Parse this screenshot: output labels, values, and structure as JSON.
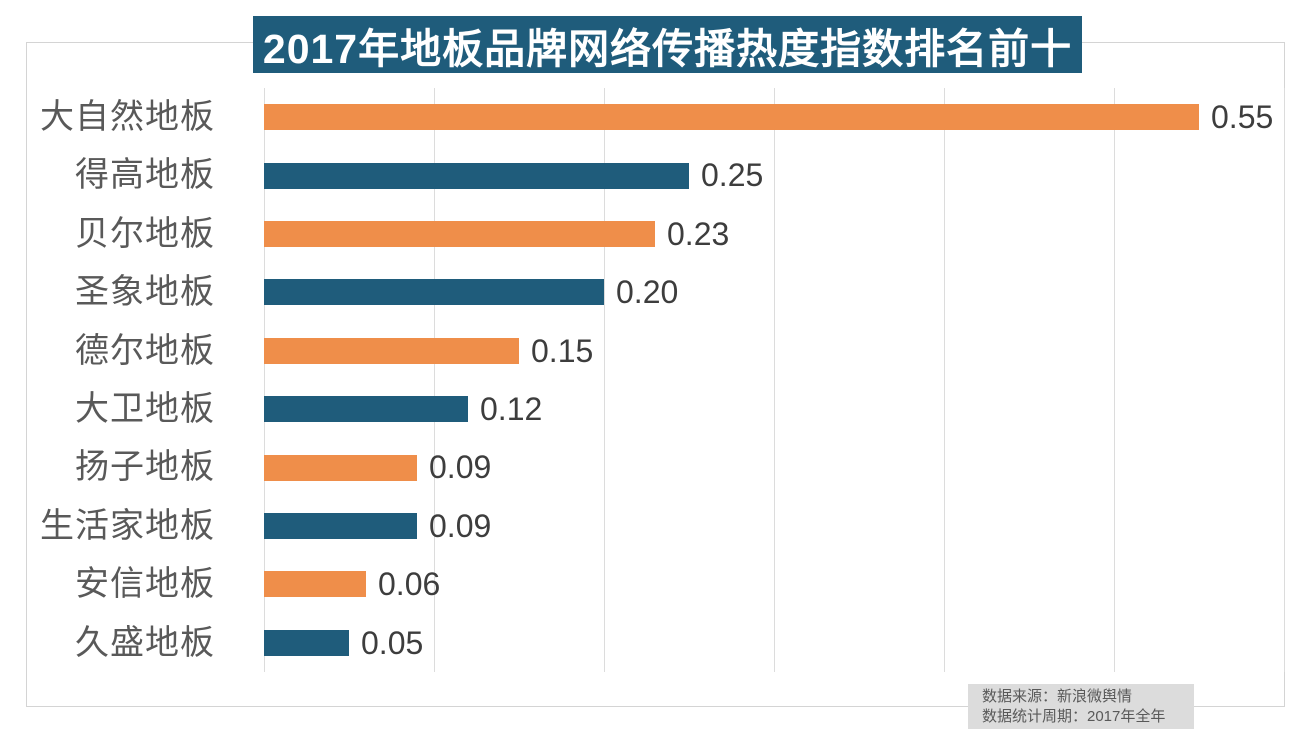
{
  "title": {
    "text": "2017年地板品牌网络传播热度指数排名前十",
    "bg_color": "#1f5c7b",
    "text_color": "#ffffff"
  },
  "source_note": {
    "lines": [
      "数据来源：新浪微舆情",
      "数据统计周期：2017年全年"
    ],
    "bg_color": "#dcdcdc",
    "text_color": "#595959"
  },
  "colors": {
    "bar_orange": "#ef8e4a",
    "bar_blue": "#1f5c7b",
    "gridline": "#dcdcdc",
    "border": "#d4d4d4",
    "category_label": "#595959",
    "value_label": "#3d3d3d"
  },
  "chart_data": {
    "type": "bar",
    "orientation": "horizontal",
    "title": "2017年地板品牌网络传播热度指数排名前十",
    "categories": [
      "大自然地板",
      "得高地板",
      "贝尔地板",
      "圣象地板",
      "德尔地板",
      "大卫地板",
      "扬子地板",
      "生活家地板",
      "安信地板",
      "久盛地板"
    ],
    "values": [
      0.55,
      0.25,
      0.23,
      0.2,
      0.15,
      0.12,
      0.09,
      0.09,
      0.06,
      0.05
    ],
    "value_labels": [
      "0.55",
      "0.25",
      "0.23",
      "0.20",
      "0.15",
      "0.12",
      "0.09",
      "0.09",
      "0.06",
      "0.05"
    ],
    "xlabel": "",
    "ylabel": "",
    "xlim": [
      0,
      0.6
    ],
    "grid_interval": 0.1,
    "grid": true,
    "legend_position": "none",
    "bar_color_pattern": [
      "#ef8e4a",
      "#1f5c7b"
    ]
  }
}
